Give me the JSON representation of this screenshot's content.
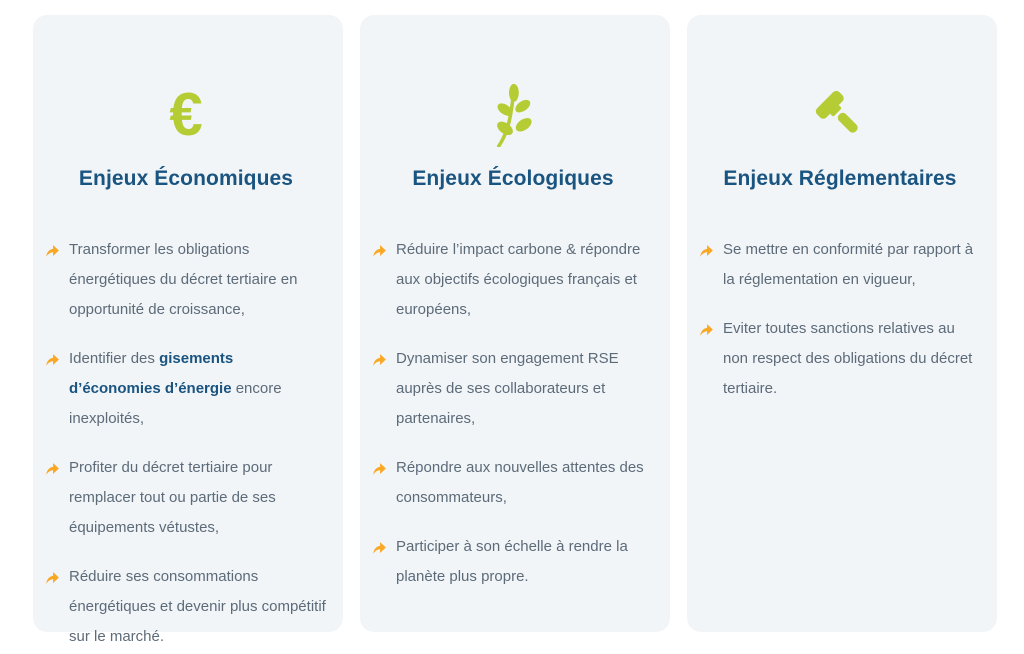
{
  "colors": {
    "page_bg": "#ffffff",
    "card_bg": "#f1f5f8",
    "title": "#1a5480",
    "body": "#5d6b79",
    "accent_green": "#b5cc35",
    "arrow": "#f9a826"
  },
  "cards": [
    {
      "id": "economiques",
      "icon": "euro-icon",
      "icon_glyph": "€",
      "title": "Enjeux Économiques",
      "items": [
        [
          {
            "t": "Transformer les obligations énergétiques du décret tertiaire en opportunité de croissance,"
          }
        ],
        [
          {
            "t": "Identifier des "
          },
          {
            "t": "gisements d’économies d’énergie",
            "b": true
          },
          {
            "t": " encore inexploités,"
          }
        ],
        [
          {
            "t": "Profiter du décret tertiaire pour remplacer tout ou partie de ses équipements vétustes,"
          }
        ],
        [
          {
            "t": "Réduire ses consommations énergétiques et devenir plus compétitif sur le marché."
          }
        ]
      ]
    },
    {
      "id": "ecologiques",
      "icon": "leaf-icon",
      "title": "Enjeux Écologiques",
      "items": [
        [
          {
            "t": "Réduire l’impact carbone & répondre aux objectifs écologiques français et européens,"
          }
        ],
        [
          {
            "t": "Dynamiser son engagement RSE auprès de ses collaborateurs et partenaires,"
          }
        ],
        [
          {
            "t": "Répondre aux nouvelles attentes des consommateurs,"
          }
        ],
        [
          {
            "t": "Participer à son échelle à rendre la planète plus propre."
          }
        ]
      ]
    },
    {
      "id": "reglementaires",
      "icon": "gavel-icon",
      "title": "Enjeux Réglementaires",
      "items": [
        [
          {
            "t": "Se mettre en conformité par rapport à la réglementation en vigueur,"
          }
        ],
        [
          {
            "t": "Eviter toutes sanctions relatives au non respect des obligations du décret tertiaire."
          }
        ]
      ]
    }
  ]
}
